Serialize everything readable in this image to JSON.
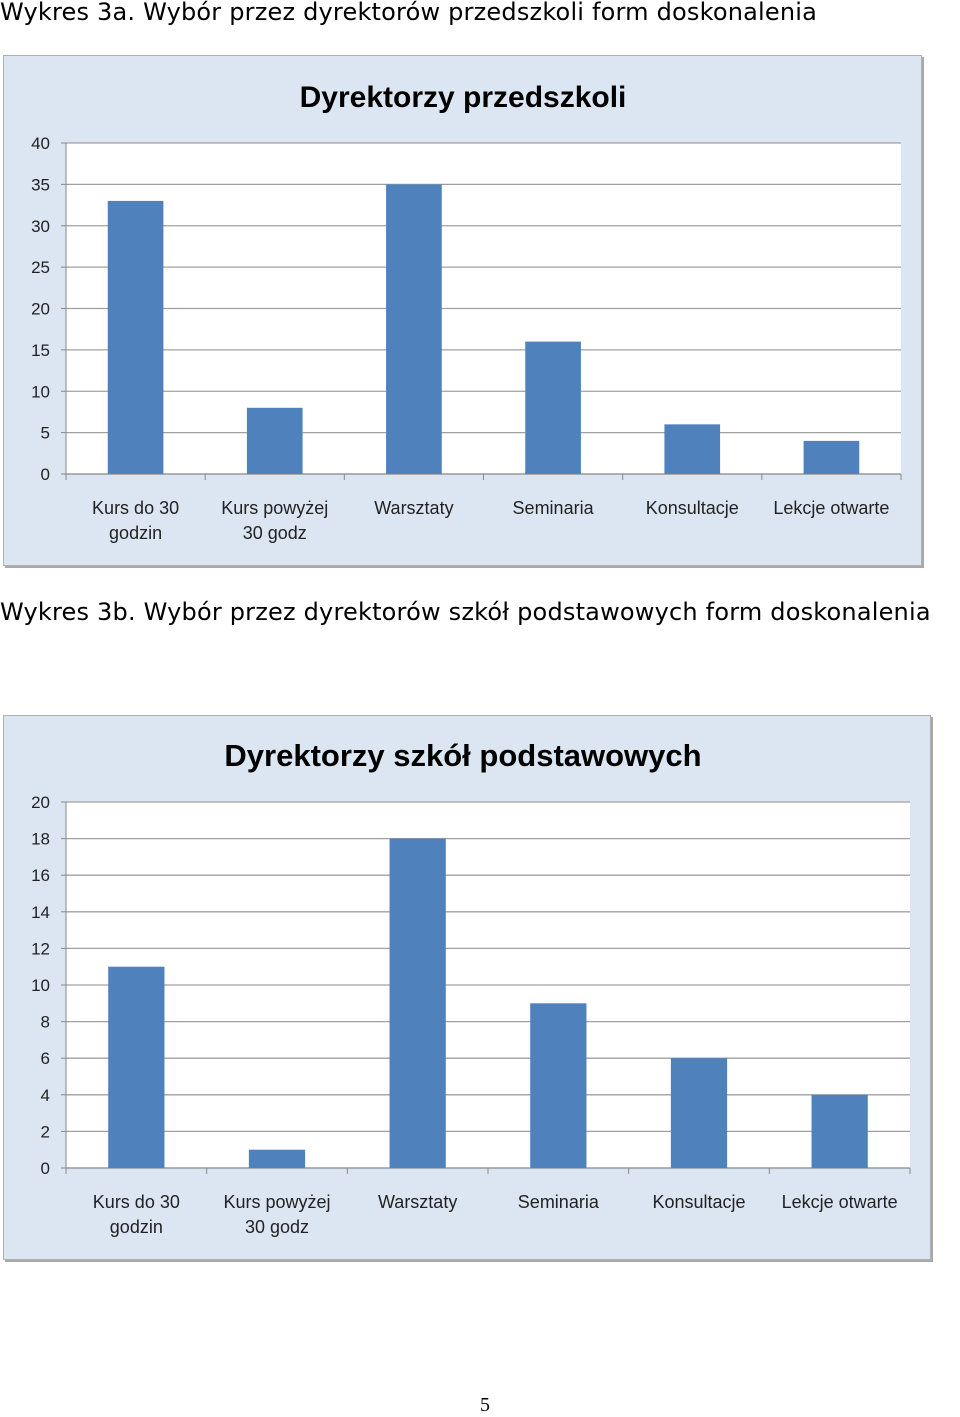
{
  "captions": {
    "a": "Wykres 3a. Wybór przez dyrektorów przedszkoli form doskonalenia",
    "b": "Wykres 3b. Wybór przez dyrektorów szkół podstawowych form doskonalenia"
  },
  "page_number": "5",
  "colors": {
    "bar": "#4f81bd",
    "plot_bg": "#ffffff",
    "chart_bg": "#dce6f2",
    "grid": "#a0a0a0"
  },
  "chart_data": [
    {
      "type": "bar",
      "title": "Dyrektorzy przedszkoli",
      "categories": [
        [
          "Kurs do 30",
          "godzin"
        ],
        [
          "Kurs powyżej",
          "30 godz"
        ],
        [
          "Warsztaty"
        ],
        [
          "Seminaria"
        ],
        [
          "Konsultacje"
        ],
        [
          "Lekcje otwarte"
        ]
      ],
      "values": [
        33,
        8,
        35,
        16,
        6,
        4
      ],
      "ylim": [
        0,
        40
      ],
      "yticks": [
        "0",
        "5",
        "10",
        "15",
        "20",
        "25",
        "30",
        "35",
        "40"
      ],
      "grid": true,
      "legend": "none"
    },
    {
      "type": "bar",
      "title": "Dyrektorzy szkół podstawowych",
      "categories": [
        [
          "Kurs do 30",
          "godzin"
        ],
        [
          "Kurs powyżej",
          "30 godz"
        ],
        [
          "Warsztaty"
        ],
        [
          "Seminaria"
        ],
        [
          "Konsultacje"
        ],
        [
          "Lekcje otwarte"
        ]
      ],
      "values": [
        11,
        1,
        18,
        9,
        6,
        4
      ],
      "ylim": [
        0,
        20
      ],
      "yticks": [
        "0",
        "2",
        "4",
        "6",
        "8",
        "10",
        "12",
        "14",
        "16",
        "18",
        "20"
      ],
      "grid": true,
      "legend": "none"
    }
  ]
}
